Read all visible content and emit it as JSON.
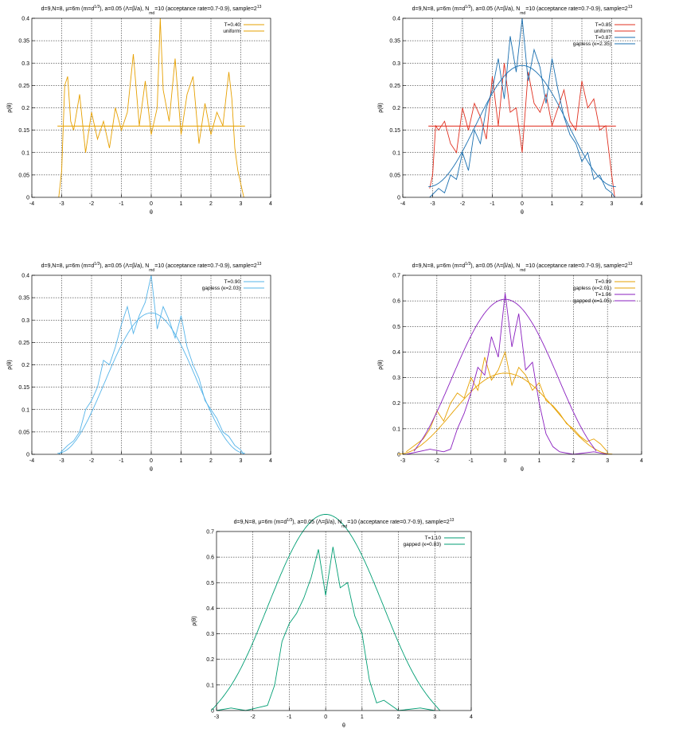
{
  "chart_data": [
    {
      "type": "line",
      "title_parts": [
        "d=9,N=8, μ=6m (m=d",
        "1/3",
        "), a=0.05 (Λ=β/a), N",
        "md",
        "=10 (acceptance rate=0.7-0.9),  sample=2",
        "13"
      ],
      "xlabel": "θ",
      "ylabel": "ρ(θ)",
      "xlim": [
        -4,
        4
      ],
      "ylim": [
        0,
        0.4
      ],
      "xticks": [
        "-4",
        "-3",
        "-2",
        "-1",
        "0",
        "1",
        "2",
        "3",
        "4"
      ],
      "yticks": [
        "0",
        "0.05",
        "0.1",
        "0.15",
        "0.2",
        "0.25",
        "0.3",
        "0.35",
        "0.4"
      ],
      "grid": true,
      "legend": "top-right",
      "series": [
        {
          "name": "T=0.40",
          "kind": "histogram",
          "color": "#e6a000",
          "x": [
            -3.1,
            -3.0,
            -2.9,
            -2.8,
            -2.7,
            -2.6,
            -2.4,
            -2.2,
            -2.0,
            -1.8,
            -1.6,
            -1.4,
            -1.2,
            -1.0,
            -0.8,
            -0.6,
            -0.4,
            -0.2,
            0.0,
            0.2,
            0.3,
            0.4,
            0.6,
            0.8,
            1.0,
            1.2,
            1.4,
            1.6,
            1.8,
            2.0,
            2.2,
            2.4,
            2.6,
            2.7,
            2.8,
            2.9,
            3.0,
            3.1
          ],
          "y": [
            0.0,
            0.06,
            0.25,
            0.27,
            0.17,
            0.15,
            0.23,
            0.1,
            0.19,
            0.13,
            0.17,
            0.11,
            0.2,
            0.15,
            0.19,
            0.32,
            0.16,
            0.26,
            0.14,
            0.2,
            0.4,
            0.24,
            0.17,
            0.31,
            0.14,
            0.23,
            0.27,
            0.12,
            0.21,
            0.14,
            0.19,
            0.16,
            0.28,
            0.22,
            0.11,
            0.06,
            0.03,
            0.0
          ]
        },
        {
          "name": "uniform",
          "kind": "curve",
          "color": "#e6a000",
          "formula": "uniform"
        }
      ]
    },
    {
      "type": "line",
      "title_parts": [
        "d=9,N=8, μ=6m (m=d",
        "1/3",
        "), a=0.05 (Λ=β/a), N",
        "md",
        "=10 (acceptance rate=0.7-0.9),  sample=2",
        "13"
      ],
      "xlabel": "θ",
      "ylabel": "ρ(θ)",
      "xlim": [
        -4,
        4
      ],
      "ylim": [
        0,
        0.4
      ],
      "xticks": [
        "-4",
        "-3",
        "-2",
        "-1",
        "0",
        "1",
        "2",
        "3",
        "4"
      ],
      "yticks": [
        "0",
        "0.05",
        "0.1",
        "0.15",
        "0.2",
        "0.25",
        "0.3",
        "0.35",
        "0.4"
      ],
      "grid": true,
      "legend": "top-right",
      "series": [
        {
          "name": "T=0.85",
          "kind": "histogram",
          "color": "#e03020",
          "x": [
            -3.1,
            -3.0,
            -2.9,
            -2.8,
            -2.6,
            -2.4,
            -2.2,
            -2.0,
            -1.8,
            -1.6,
            -1.4,
            -1.2,
            -1.0,
            -0.8,
            -0.6,
            -0.4,
            -0.2,
            0.0,
            0.2,
            0.4,
            0.6,
            0.8,
            1.0,
            1.2,
            1.4,
            1.6,
            1.8,
            2.0,
            2.2,
            2.4,
            2.6,
            2.8,
            3.0,
            3.1
          ],
          "y": [
            0.02,
            0.05,
            0.16,
            0.15,
            0.17,
            0.12,
            0.1,
            0.2,
            0.15,
            0.21,
            0.18,
            0.13,
            0.27,
            0.16,
            0.3,
            0.19,
            0.2,
            0.1,
            0.28,
            0.21,
            0.19,
            0.23,
            0.16,
            0.2,
            0.24,
            0.17,
            0.15,
            0.26,
            0.2,
            0.22,
            0.15,
            0.16,
            0.05,
            0.0
          ]
        },
        {
          "name": "uniform",
          "kind": "curve",
          "color": "#e03020",
          "formula": "uniform"
        },
        {
          "name": "T=0.87",
          "kind": "histogram",
          "color": "#1a6fb0",
          "x": [
            -3.1,
            -2.8,
            -2.6,
            -2.4,
            -2.2,
            -2.0,
            -1.8,
            -1.6,
            -1.4,
            -1.2,
            -1.0,
            -0.8,
            -0.6,
            -0.4,
            -0.2,
            0.0,
            0.2,
            0.4,
            0.6,
            0.8,
            1.0,
            1.2,
            1.4,
            1.6,
            1.8,
            2.0,
            2.2,
            2.4,
            2.6,
            2.8,
            3.0,
            3.1
          ],
          "y": [
            0.0,
            0.02,
            0.01,
            0.05,
            0.04,
            0.1,
            0.06,
            0.15,
            0.12,
            0.2,
            0.24,
            0.31,
            0.22,
            0.36,
            0.28,
            0.4,
            0.26,
            0.33,
            0.29,
            0.21,
            0.31,
            0.24,
            0.18,
            0.14,
            0.12,
            0.08,
            0.1,
            0.04,
            0.05,
            0.02,
            0.01,
            0.0
          ]
        },
        {
          "name": "gapless (κ=2.35)",
          "kind": "curve",
          "color": "#1a6fb0",
          "formula": "gapless",
          "kappa": 2.35
        }
      ]
    },
    {
      "type": "line",
      "title_parts": [
        "d=9,N=8, μ=6m (m=d",
        "1/3",
        "), a=0.05 (Λ=β/a), N",
        "md",
        "=10 (acceptance rate=0.7-0.9),  sample=2",
        "13"
      ],
      "xlabel": "θ",
      "ylabel": "ρ(θ)",
      "xlim": [
        -4,
        4
      ],
      "ylim": [
        0,
        0.4
      ],
      "xticks": [
        "-4",
        "-3",
        "-2",
        "-1",
        "0",
        "1",
        "2",
        "3",
        "4"
      ],
      "yticks": [
        "0",
        "0.05",
        "0.1",
        "0.15",
        "0.2",
        "0.25",
        "0.3",
        "0.35",
        "0.4"
      ],
      "grid": true,
      "legend": "top-right",
      "series": [
        {
          "name": "T=0.90",
          "kind": "histogram",
          "color": "#56b4e9",
          "x": [
            -3.1,
            -2.8,
            -2.6,
            -2.4,
            -2.2,
            -2.0,
            -1.8,
            -1.6,
            -1.4,
            -1.2,
            -1.0,
            -0.8,
            -0.6,
            -0.4,
            -0.2,
            0.0,
            0.2,
            0.4,
            0.6,
            0.8,
            1.0,
            1.2,
            1.4,
            1.6,
            1.8,
            2.0,
            2.2,
            2.4,
            2.6,
            2.8,
            3.0,
            3.1
          ],
          "y": [
            0.0,
            0.02,
            0.03,
            0.05,
            0.1,
            0.12,
            0.15,
            0.21,
            0.2,
            0.24,
            0.29,
            0.33,
            0.27,
            0.31,
            0.34,
            0.4,
            0.28,
            0.33,
            0.3,
            0.26,
            0.31,
            0.24,
            0.2,
            0.17,
            0.12,
            0.1,
            0.08,
            0.05,
            0.04,
            0.02,
            0.01,
            0.0
          ]
        },
        {
          "name": "gapless (κ=2.03)",
          "kind": "curve",
          "color": "#56b4e9",
          "formula": "gapless",
          "kappa": 2.03
        }
      ]
    },
    {
      "type": "line",
      "title_parts": [
        "d=9,N=8, μ=6m (m=d",
        "1/3",
        "), a=0.05 (Λ=β/a), N",
        "md",
        "=10 (acceptance rate=0.7-0.9),  sample=2",
        "13"
      ],
      "xlabel": "θ",
      "ylabel": "ρ(θ)",
      "xlim": [
        -3,
        4
      ],
      "ylim": [
        0,
        0.7
      ],
      "xticks": [
        "-3",
        "-2",
        "-1",
        "0",
        "1",
        "2",
        "3",
        "4"
      ],
      "yticks": [
        "0",
        "0.1",
        "0.2",
        "0.3",
        "0.4",
        "0.5",
        "0.6",
        "0.7"
      ],
      "grid": true,
      "legend": "top-right",
      "series": [
        {
          "name": "T=0.99",
          "kind": "histogram",
          "color": "#e6a000",
          "x": [
            -2.9,
            -2.6,
            -2.4,
            -2.2,
            -2.0,
            -1.8,
            -1.6,
            -1.4,
            -1.2,
            -1.0,
            -0.8,
            -0.6,
            -0.4,
            -0.2,
            0.0,
            0.2,
            0.4,
            0.6,
            0.8,
            1.0,
            1.2,
            1.4,
            1.6,
            1.8,
            2.0,
            2.2,
            2.4,
            2.6,
            2.8,
            3.0
          ],
          "y": [
            0.01,
            0.04,
            0.06,
            0.1,
            0.17,
            0.13,
            0.2,
            0.24,
            0.22,
            0.3,
            0.25,
            0.38,
            0.29,
            0.33,
            0.4,
            0.27,
            0.34,
            0.31,
            0.25,
            0.28,
            0.21,
            0.19,
            0.16,
            0.12,
            0.1,
            0.07,
            0.05,
            0.06,
            0.04,
            0.01
          ]
        },
        {
          "name": "gapless (κ=2.01)",
          "kind": "curve",
          "color": "#e6a000",
          "formula": "gapless",
          "kappa": 2.01
        },
        {
          "name": "T=1.06",
          "kind": "histogram",
          "color": "#8a1fbf",
          "x": [
            -2.9,
            -2.2,
            -1.8,
            -1.6,
            -1.4,
            -1.2,
            -1.0,
            -0.8,
            -0.6,
            -0.4,
            -0.2,
            0.0,
            0.2,
            0.4,
            0.6,
            0.8,
            1.0,
            1.2,
            1.4,
            1.6,
            2.0,
            2.6,
            3.0
          ],
          "y": [
            0.0,
            0.02,
            0.01,
            0.02,
            0.1,
            0.16,
            0.24,
            0.34,
            0.31,
            0.46,
            0.38,
            0.63,
            0.42,
            0.55,
            0.33,
            0.36,
            0.2,
            0.08,
            0.03,
            0.01,
            0.0,
            0.01,
            0.0
          ]
        },
        {
          "name": "gapped (κ=1.05)",
          "kind": "curve",
          "color": "#8a1fbf",
          "formula": "gapped",
          "kappa": 1.05
        }
      ]
    },
    {
      "type": "line",
      "title_parts": [
        "d=9,N=8, μ=6m (m=d",
        "1/3",
        "), a=0.05 (Λ=β/a), N",
        "md",
        "=10 (acceptance rate=0.7-0.9),  sample=2",
        "13"
      ],
      "xlabel": "θ",
      "ylabel": "ρ(θ)",
      "xlim": [
        -3,
        4
      ],
      "ylim": [
        0,
        0.7
      ],
      "xticks": [
        "-3",
        "-2",
        "-1",
        "0",
        "1",
        "2",
        "3",
        "4"
      ],
      "yticks": [
        "0",
        "0.1",
        "0.2",
        "0.3",
        "0.4",
        "0.5",
        "0.6",
        "0.7"
      ],
      "grid": true,
      "legend": "top-right",
      "series": [
        {
          "name": "T=1.10",
          "kind": "histogram",
          "color": "#009e73",
          "x": [
            -3.0,
            -2.6,
            -2.2,
            -1.9,
            -1.6,
            -1.4,
            -1.2,
            -1.0,
            -0.8,
            -0.6,
            -0.4,
            -0.2,
            0.0,
            0.2,
            0.4,
            0.6,
            0.8,
            1.0,
            1.2,
            1.4,
            1.6,
            2.0,
            2.6,
            3.0
          ],
          "y": [
            0.0,
            0.01,
            0.0,
            0.01,
            0.02,
            0.1,
            0.27,
            0.34,
            0.38,
            0.44,
            0.52,
            0.63,
            0.45,
            0.64,
            0.48,
            0.5,
            0.37,
            0.3,
            0.12,
            0.03,
            0.04,
            0.0,
            0.01,
            0.0
          ]
        },
        {
          "name": "gapped (κ=0.83)",
          "kind": "curve",
          "color": "#009e73",
          "formula": "gapped",
          "kappa": 0.83
        }
      ]
    }
  ]
}
